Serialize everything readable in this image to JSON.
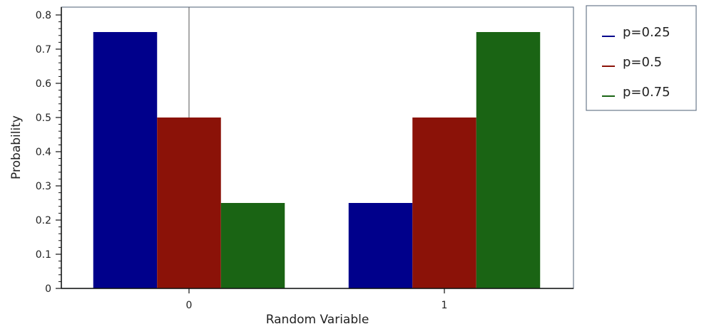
{
  "chart_data": {
    "type": "bar",
    "xlabel": "Random Variable",
    "ylabel": "Probability",
    "categories": [
      "0",
      "1"
    ],
    "ylim": [
      0,
      0.8
    ],
    "yticks": [
      "0",
      "0.1",
      "0.2",
      "0.3",
      "0.4",
      "0.5",
      "0.6",
      "0.7",
      "0.8"
    ],
    "grid": false,
    "legend_position": "right",
    "series": [
      {
        "name": "p=0.25",
        "color": "#00008b",
        "values": [
          0.75,
          0.25
        ]
      },
      {
        "name": "p=0.5",
        "color": "#8b1208",
        "values": [
          0.5,
          0.5
        ]
      },
      {
        "name": "p=0.75",
        "color": "#1a6414",
        "values": [
          0.25,
          0.75
        ]
      }
    ]
  }
}
